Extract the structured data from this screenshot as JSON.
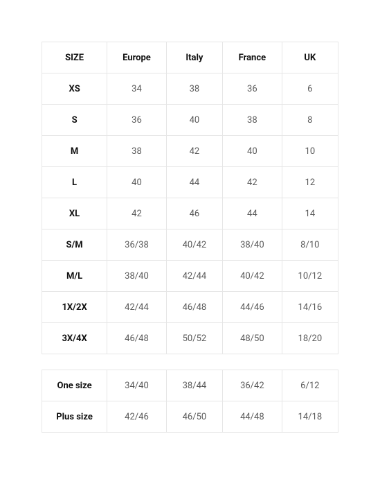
{
  "table1": {
    "columns": [
      "SIZE",
      "Europe",
      "Italy",
      "France",
      "UK"
    ],
    "rows": [
      [
        "XS",
        "34",
        "38",
        "36",
        "6"
      ],
      [
        "S",
        "36",
        "40",
        "38",
        "8"
      ],
      [
        "M",
        "38",
        "42",
        "40",
        "10"
      ],
      [
        "L",
        "40",
        "44",
        "42",
        "12"
      ],
      [
        "XL",
        "42",
        "46",
        "44",
        "14"
      ],
      [
        "S/M",
        "36/38",
        "40/42",
        "38/40",
        "8/10"
      ],
      [
        "M/L",
        "38/40",
        "42/44",
        "40/42",
        "10/12"
      ],
      [
        "1X/2X",
        "42/44",
        "46/48",
        "44/46",
        "14/16"
      ],
      [
        "3X/4X",
        "46/48",
        "50/52",
        "48/50",
        "18/20"
      ]
    ]
  },
  "table2": {
    "rows": [
      [
        "One size",
        "34/40",
        "38/44",
        "36/42",
        "6/12"
      ],
      [
        "Plus size",
        "42/46",
        "46/50",
        "44/48",
        "14/18"
      ]
    ]
  }
}
